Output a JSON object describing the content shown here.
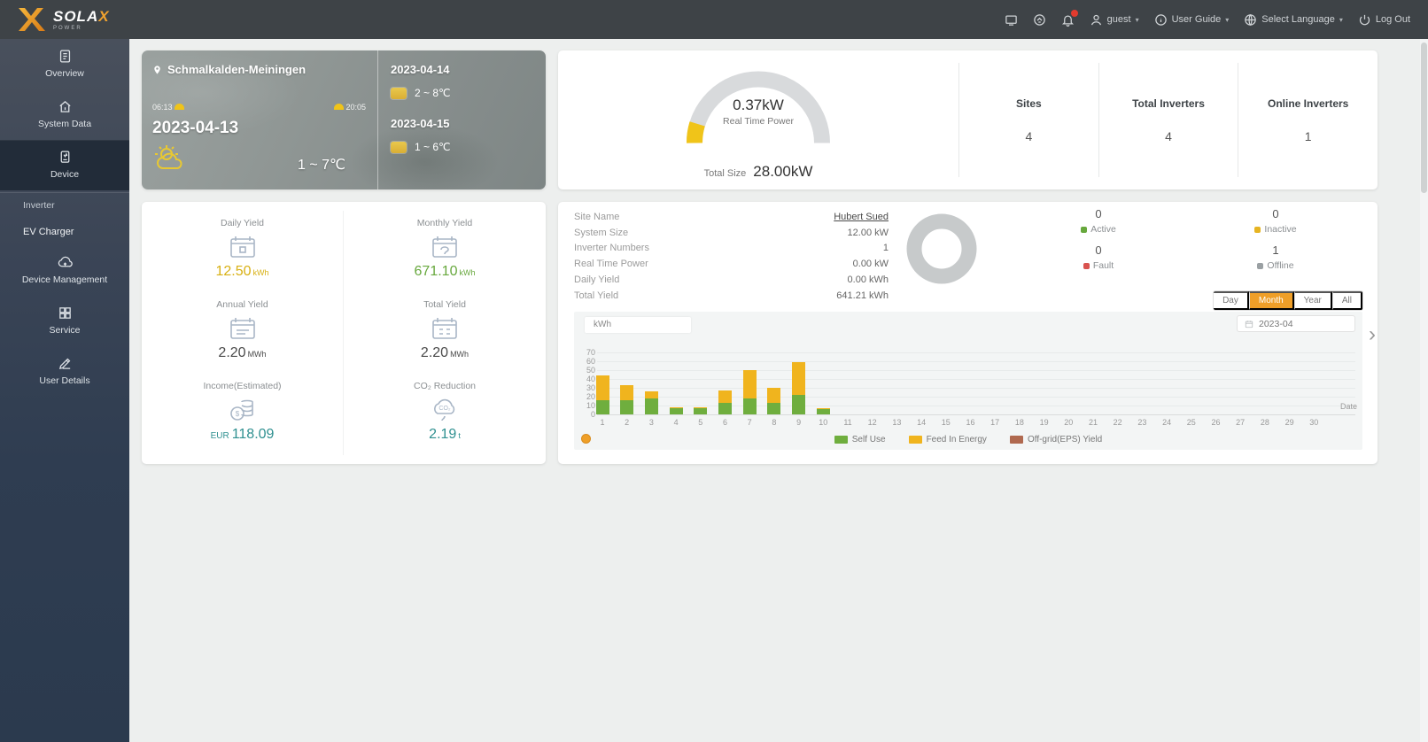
{
  "colors": {
    "accent": "#ef9f28"
  },
  "header": {
    "brand": {
      "name": "SOLA",
      "x": "X",
      "sub": "POWER"
    },
    "user": {
      "label": "guest"
    },
    "menus": [
      {
        "label": "User Guide"
      },
      {
        "label": "Select Language"
      }
    ],
    "logout": {
      "label": "Log Out"
    },
    "notifications_badge": true
  },
  "sidebar": {
    "items": [
      {
        "label": "Overview",
        "icon": "overview-icon"
      },
      {
        "label": "System Data",
        "icon": "system-data-icon"
      },
      {
        "label": "Device",
        "icon": "device-icon",
        "active": true
      },
      {
        "label": "Inverter",
        "type": "sub"
      },
      {
        "label": "EV Charger",
        "type": "sub",
        "bright": true
      },
      {
        "label": "Device Management",
        "icon": "device-management-icon"
      },
      {
        "label": "Service",
        "icon": "service-icon"
      },
      {
        "label": "User Details",
        "icon": "user-details-icon"
      }
    ]
  },
  "weather": {
    "location": "Schmalkalden-Meiningen",
    "sunrise": "06:13",
    "sunset": "20:05",
    "today": {
      "date": "2023-04-13",
      "temp": "1 ~ 7℃"
    },
    "forecast": [
      {
        "date": "2023-04-14",
        "temp": "2 ~ 8℃"
      },
      {
        "date": "2023-04-15",
        "temp": "1 ~ 6℃"
      }
    ]
  },
  "summary": {
    "gauge": {
      "value": "0.37kW",
      "label": "Real Time Power",
      "total_label": "Total Size",
      "total_value": "28.00kW"
    },
    "stats": [
      {
        "label": "Sites",
        "value": "4"
      },
      {
        "label": "Total Inverters",
        "value": "4"
      },
      {
        "label": "Online Inverters",
        "value": "1"
      }
    ]
  },
  "yields": {
    "tiles": [
      {
        "label": "Daily Yield",
        "value": "12.50",
        "unit": "kWh",
        "color": "#d8b012",
        "icon": "calendar-day-icon"
      },
      {
        "label": "Monthly Yield",
        "value": "671.10",
        "unit": "kWh",
        "color": "#67a83d",
        "icon": "calendar-month-icon"
      },
      {
        "label": "Annual Yield",
        "value": "2.20",
        "unit": "MWh",
        "color": "#4a4a4a",
        "icon": "calendar-year-icon"
      },
      {
        "label": "Total Yield",
        "value": "2.20",
        "unit": "MWh",
        "color": "#4a4a4a",
        "icon": "calendar-total-icon"
      },
      {
        "label": "Income(Estimated)",
        "value": "118.09",
        "unit_prefix": "EUR",
        "unit": "",
        "color": "#2f9090",
        "icon": "income-icon"
      },
      {
        "label": "CO₂ Reduction",
        "value": "2.19",
        "unit": "t",
        "color": "#2f9090",
        "icon": "co2-icon"
      }
    ]
  },
  "site_panel": {
    "details": [
      {
        "label": "Site Name",
        "value": "Hubert Sued",
        "link": true
      },
      {
        "label": "System Size",
        "value": "12.00 kW"
      },
      {
        "label": "Inverter Numbers",
        "value": "1"
      },
      {
        "label": "Real Time Power",
        "value": "0.00 kW"
      },
      {
        "label": "Daily Yield",
        "value": "0.00 kWh"
      },
      {
        "label": "Total Yield",
        "value": "641.21 kWh"
      }
    ],
    "device_status": [
      {
        "value": "0",
        "label": "Active",
        "color": "#67a83d"
      },
      {
        "value": "0",
        "label": "Inactive",
        "color": "#e6b422"
      },
      {
        "value": "0",
        "label": "Fault",
        "color": "#d9534f"
      },
      {
        "value": "1",
        "label": "Offline",
        "color": "#9aa0a3"
      }
    ],
    "tabs": [
      {
        "label": "Day"
      },
      {
        "label": "Month",
        "active": true
      },
      {
        "label": "Year"
      },
      {
        "label": "All"
      }
    ],
    "date_value": "2023-04",
    "unit_label": "kWh"
  },
  "chart_data": {
    "type": "bar",
    "stacked": true,
    "title": "",
    "unit": "kWh",
    "xlabel": "Date",
    "ylim": [
      0,
      70
    ],
    "yticks": [
      0,
      10,
      20,
      30,
      40,
      50,
      60,
      70
    ],
    "grid": true,
    "legend_position": "bottom",
    "categories": [
      "1",
      "2",
      "3",
      "4",
      "5",
      "6",
      "7",
      "8",
      "9",
      "10",
      "11",
      "12",
      "13",
      "14",
      "15",
      "16",
      "17",
      "18",
      "19",
      "20",
      "21",
      "22",
      "23",
      "24",
      "25",
      "26",
      "27",
      "28",
      "29",
      "30"
    ],
    "series": [
      {
        "name": "Self Use",
        "color": "#6fae3e",
        "values": [
          16,
          16,
          18,
          7,
          7,
          13,
          18,
          13,
          22,
          6,
          0,
          0,
          0,
          0,
          0,
          0,
          0,
          0,
          0,
          0,
          0,
          0,
          0,
          0,
          0,
          0,
          0,
          0,
          0,
          0
        ]
      },
      {
        "name": "Feed In Energy",
        "color": "#f0b41e",
        "values": [
          28,
          17,
          8,
          1,
          1,
          14,
          32,
          17,
          37,
          1,
          0,
          0,
          0,
          0,
          0,
          0,
          0,
          0,
          0,
          0,
          0,
          0,
          0,
          0,
          0,
          0,
          0,
          0,
          0,
          0
        ]
      },
      {
        "name": "Off-grid(EPS) Yield",
        "color": "#b0694f",
        "values": [
          0,
          0,
          0,
          0,
          0,
          0,
          0,
          0,
          0,
          0,
          0,
          0,
          0,
          0,
          0,
          0,
          0,
          0,
          0,
          0,
          0,
          0,
          0,
          0,
          0,
          0,
          0,
          0,
          0,
          0
        ]
      }
    ]
  }
}
